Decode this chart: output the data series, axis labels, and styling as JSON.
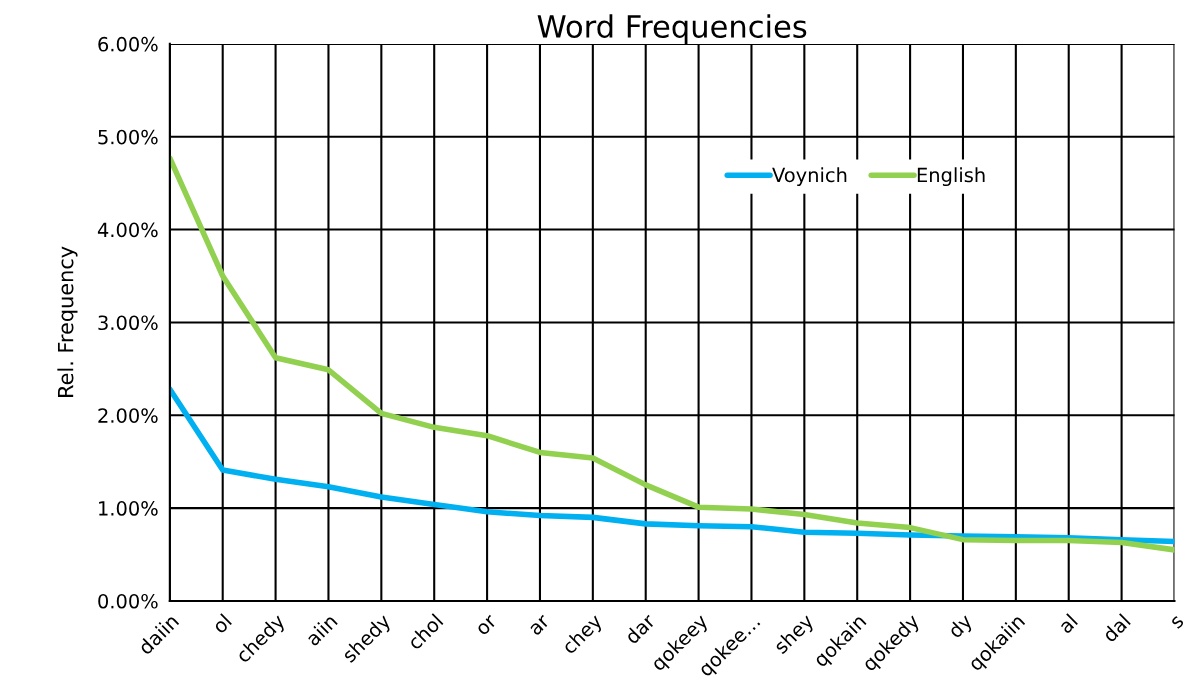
{
  "chart_data": {
    "type": "line",
    "title": "Word Frequencies",
    "ylabel": "Rel. Frequency",
    "categories": [
      "daiin",
      "ol",
      "chedy",
      "aiin",
      "shedy",
      "chol",
      "or",
      "ar",
      "chey",
      "dar",
      "qokeey",
      "qokee…",
      "shey",
      "qokain",
      "qokedy",
      "dy",
      "qokaiin",
      "al",
      "dal",
      "s"
    ],
    "series": [
      {
        "name": "Voynich",
        "color": "#00b0f0",
        "values": [
          2.28,
          1.41,
          1.31,
          1.23,
          1.12,
          1.04,
          0.96,
          0.92,
          0.9,
          0.83,
          0.81,
          0.8,
          0.74,
          0.73,
          0.71,
          0.7,
          0.69,
          0.68,
          0.66,
          0.64
        ]
      },
      {
        "name": "English",
        "color": "#92d050",
        "values": [
          4.77,
          3.5,
          2.62,
          2.49,
          2.02,
          1.87,
          1.78,
          1.6,
          1.54,
          1.25,
          1.01,
          0.99,
          0.93,
          0.84,
          0.79,
          0.66,
          0.65,
          0.65,
          0.63,
          0.55
        ]
      }
    ],
    "ylim": [
      0,
      6
    ],
    "yticks": [
      {
        "value": 0,
        "label": "0.00%"
      },
      {
        "value": 1,
        "label": "1.00%"
      },
      {
        "value": 2,
        "label": "2.00%"
      },
      {
        "value": 3,
        "label": "3.00%"
      },
      {
        "value": 4,
        "label": "4.00%"
      },
      {
        "value": 5,
        "label": "5.00%"
      },
      {
        "value": 6,
        "label": "6.00%"
      }
    ],
    "grid": true,
    "legend": "top right",
    "marker": "none",
    "line_style": "solid"
  }
}
